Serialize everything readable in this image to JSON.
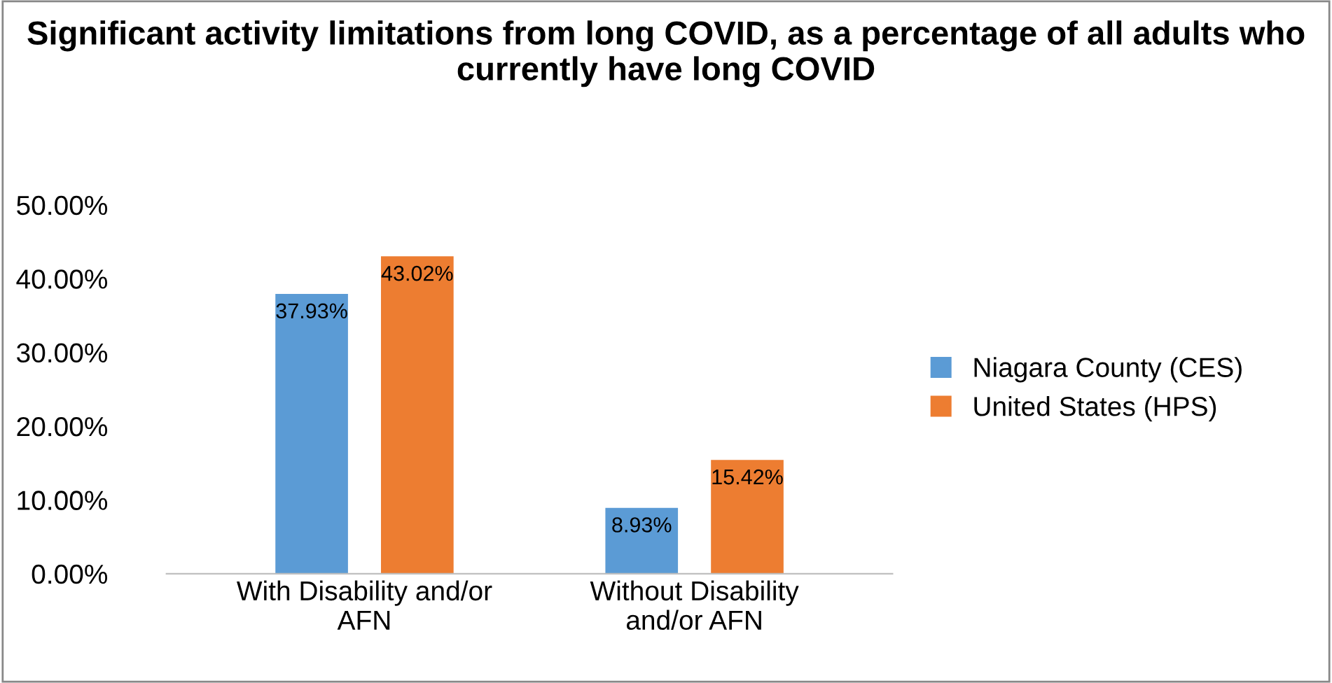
{
  "chart_data": {
    "type": "bar",
    "title": "Significant activity limitations from long COVID, as a percentage of all adults who currently have long COVID",
    "categories": [
      "With Disability and/or\nAFN",
      "Without Disability\nand/or AFN"
    ],
    "series": [
      {
        "name": "Niagara County (CES)",
        "color": "#5b9bd5",
        "values": [
          37.93,
          8.93
        ],
        "value_labels": [
          "37.93%",
          "8.93%"
        ]
      },
      {
        "name": "United States (HPS)",
        "color": "#ed7d31",
        "values": [
          43.02,
          15.42
        ],
        "value_labels": [
          "43.02%",
          "15.42%"
        ]
      }
    ],
    "ylim": [
      0,
      50
    ],
    "yticks": [
      {
        "value": 0,
        "label": "0.00%"
      },
      {
        "value": 10,
        "label": "10.00%"
      },
      {
        "value": 20,
        "label": "20.00%"
      },
      {
        "value": 30,
        "label": "30.00%"
      },
      {
        "value": 40,
        "label": "40.00%"
      },
      {
        "value": 50,
        "label": "50.00%"
      }
    ],
    "grid": false,
    "legend": "right"
  }
}
